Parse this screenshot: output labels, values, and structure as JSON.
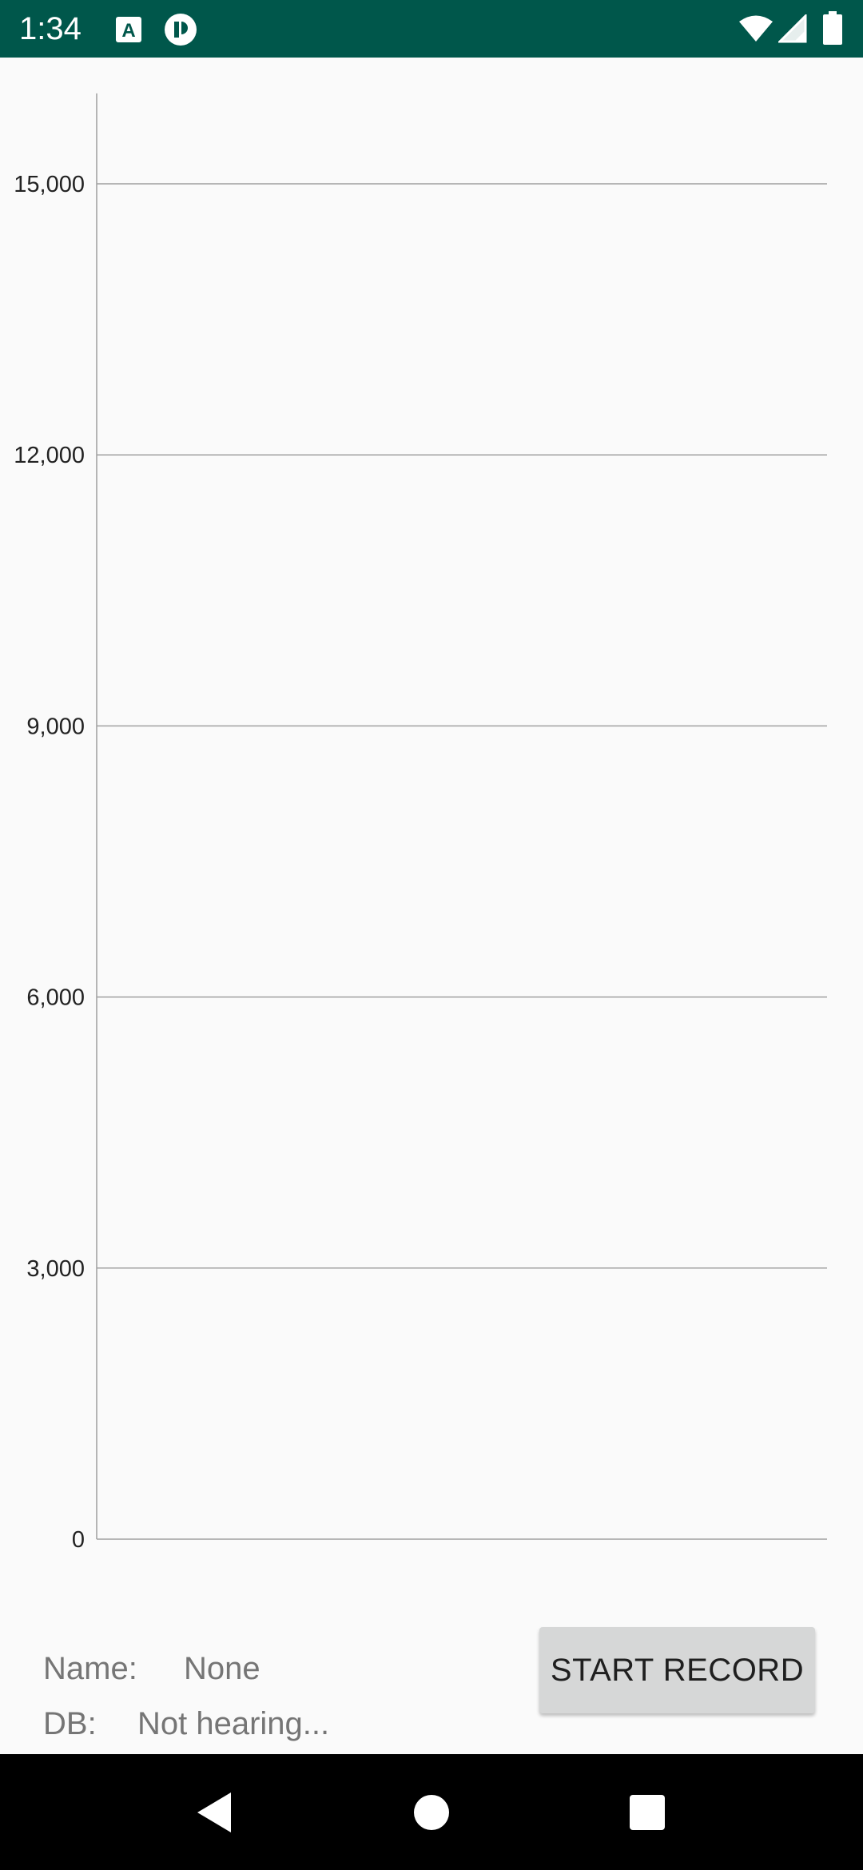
{
  "status_bar": {
    "time": "1:34",
    "left_icons": [
      "keyboard-a-icon",
      "app-circle-icon"
    ],
    "right_icons": [
      "wifi-icon",
      "cell-signal-icon",
      "battery-icon"
    ],
    "background": "#00574b"
  },
  "chart_data": {
    "type": "line",
    "series": [],
    "y_ticks": [
      "0",
      "3,000",
      "6,000",
      "9,000",
      "12,000",
      "15,000"
    ],
    "y_tick_values": [
      0,
      3000,
      6000,
      9000,
      12000,
      15000
    ],
    "ylim": [
      0,
      16000
    ],
    "grid": true
  },
  "info": {
    "name_label": "Name:",
    "name_value": "None",
    "db_label": "DB:",
    "db_value": "Not hearing..."
  },
  "button": {
    "label": "START RECORD"
  },
  "nav": {
    "icons": [
      "back-icon",
      "home-icon",
      "recents-icon"
    ]
  }
}
